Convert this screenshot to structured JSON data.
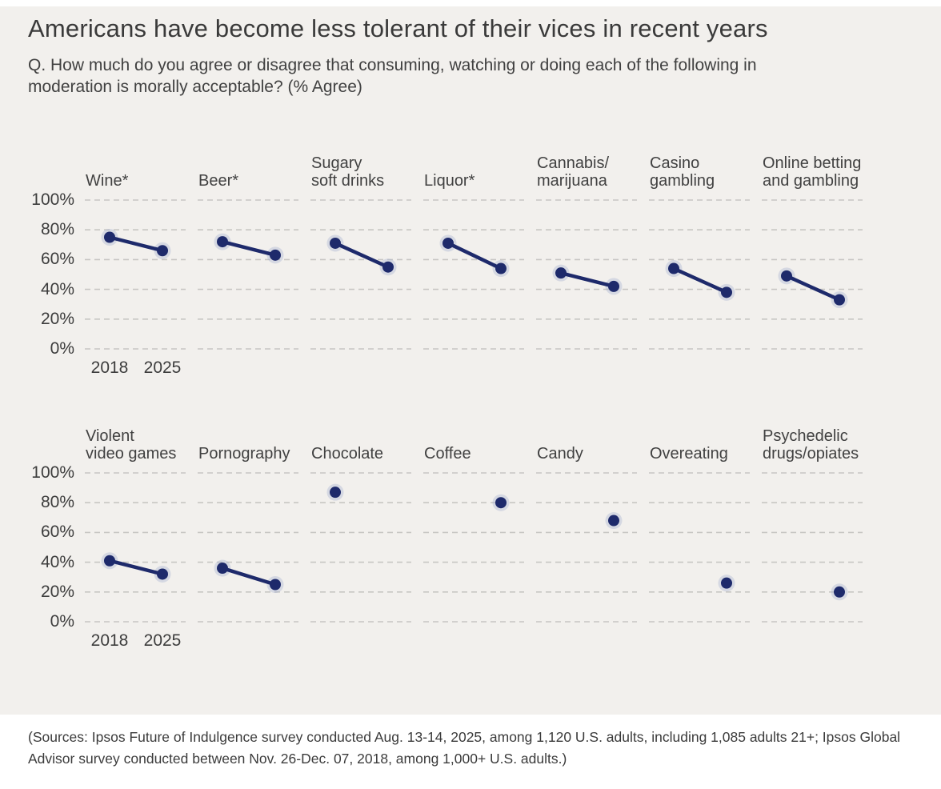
{
  "title": "Americans have become less tolerant of their vices in recent years",
  "subtitle": "Q. How much do you agree or disagree that consuming, watching or doing each of the following in moderation is morally acceptable? (% Agree)",
  "source": "(Sources: Ipsos Future of Indulgence survey conducted Aug. 13-14, 2025, among 1,120 U.S. adults, including 1,085 adults 21+; Ipsos Global Advisor survey conducted between Nov. 26-Dec. 07, 2018, among 1,000+ U.S. adults.)",
  "colors": {
    "accent_navy": "#1e2a6b",
    "dot_halo": "rgba(166,175,208,0.38)",
    "gridline": "#c7c6c3",
    "panel_background": "#f2f0ed",
    "text": "#3d3d3d"
  },
  "chart_data": {
    "type": "line",
    "subtype": "slope-small-multiples",
    "x": [
      2018,
      2025
    ],
    "x_axis_labels": [
      "2018",
      "2025"
    ],
    "ylim": [
      0,
      100
    ],
    "yticks": [
      "100%",
      "80%",
      "60%",
      "40%",
      "20%",
      "0%"
    ],
    "grid": "dashed-horizontal",
    "unit": "% agree",
    "rows": [
      {
        "panels": [
          {
            "label": "Wine*",
            "lines": [
              "Wine*"
            ],
            "values": {
              "2018": 75,
              "2025": 66
            }
          },
          {
            "label": "Beer*",
            "lines": [
              "Beer*"
            ],
            "values": {
              "2018": 72,
              "2025": 63
            }
          },
          {
            "label": "Sugary soft drinks",
            "lines": [
              "Sugary",
              "soft drinks"
            ],
            "values": {
              "2018": 71,
              "2025": 55
            }
          },
          {
            "label": "Liquor*",
            "lines": [
              "Liquor*"
            ],
            "values": {
              "2018": 71,
              "2025": 54
            }
          },
          {
            "label": "Cannabis/marijuana",
            "lines": [
              "Cannabis/",
              "marijuana"
            ],
            "values": {
              "2018": 51,
              "2025": 42
            }
          },
          {
            "label": "Casino gambling",
            "lines": [
              "Casino",
              "gambling"
            ],
            "values": {
              "2018": 54,
              "2025": 38
            }
          },
          {
            "label": "Online betting and gambling",
            "lines": [
              "Online betting",
              "and gambling"
            ],
            "values": {
              "2018": 49,
              "2025": 33
            }
          }
        ]
      },
      {
        "panels": [
          {
            "label": "Violent video games",
            "lines": [
              "Violent",
              "video games"
            ],
            "values": {
              "2018": 41,
              "2025": 32
            }
          },
          {
            "label": "Pornography",
            "lines": [
              "Pornography"
            ],
            "values": {
              "2018": 36,
              "2025": 25
            }
          },
          {
            "label": "Chocolate",
            "lines": [
              "Chocolate"
            ],
            "values": {
              "2018": 87,
              "2025": null
            }
          },
          {
            "label": "Coffee",
            "lines": [
              "Coffee"
            ],
            "values": {
              "2018": null,
              "2025": 80
            }
          },
          {
            "label": "Candy",
            "lines": [
              "Candy"
            ],
            "values": {
              "2018": null,
              "2025": 68
            }
          },
          {
            "label": "Overeating",
            "lines": [
              "Overeating"
            ],
            "values": {
              "2018": null,
              "2025": 26
            }
          },
          {
            "label": "Psychedelic drugs/opiates",
            "lines": [
              "Psychedelic",
              "drugs/opiates"
            ],
            "values": {
              "2018": null,
              "2025": 20
            }
          }
        ]
      }
    ]
  }
}
